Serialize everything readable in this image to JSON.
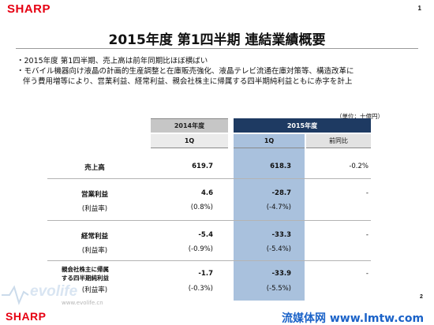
{
  "header": {
    "logo": "SHARP",
    "page_number": "1"
  },
  "footer": {
    "logo": "SHARP",
    "page_number": "2",
    "watermark_left": "evolife",
    "watermark_left_sub": "www.evolife.cn",
    "watermark_right": "流媒体网 www.lmtw.com"
  },
  "title": "2015年度 第1四半期 連結業績概要",
  "bullets": [
    "・2015年度 第1四半期、売上高は前年同期比ほぼ横ばい",
    "・モバイル機器向け液晶の計画的生産調整と在庫販売強化、液晶テレビ流通在庫対策等、構造改革に",
    "伴う費用増等により、営業利益、経常利益、親会社株主に帰属する四半期純利益ともに赤字を計上"
  ],
  "unit": "（単位：十億円）",
  "table": {
    "year_2014": "2014年度",
    "year_2015": "2015年度",
    "q_2014": "1Q",
    "q_2015": "1Q",
    "yoy_label": "前同比",
    "rows": [
      {
        "label": "売上高",
        "v2014": "619.7",
        "v2015": "618.3",
        "yoy": "-0.2%"
      },
      {
        "label": "営業利益",
        "v2014": "4.6",
        "v2015": "-28.7",
        "yoy": "-"
      },
      {
        "label": "(利益率)",
        "v2014": "(0.8%)",
        "v2015": "(-4.7%)",
        "yoy": ""
      },
      {
        "label": "経常利益",
        "v2014": "-5.4",
        "v2015": "-33.3",
        "yoy": "-"
      },
      {
        "label": "(利益率)",
        "v2014": "(-0.9%)",
        "v2015": "(-5.4%)",
        "yoy": ""
      },
      {
        "label_line1": "親会社株主に帰属",
        "label_line2": "する四半期純利益",
        "v2014": "-1.7",
        "v2015": "-33.9",
        "yoy": "-"
      },
      {
        "label": "(利益率)",
        "v2014": "(-0.3%)",
        "v2015": "(-5.5%)",
        "yoy": ""
      }
    ]
  }
}
